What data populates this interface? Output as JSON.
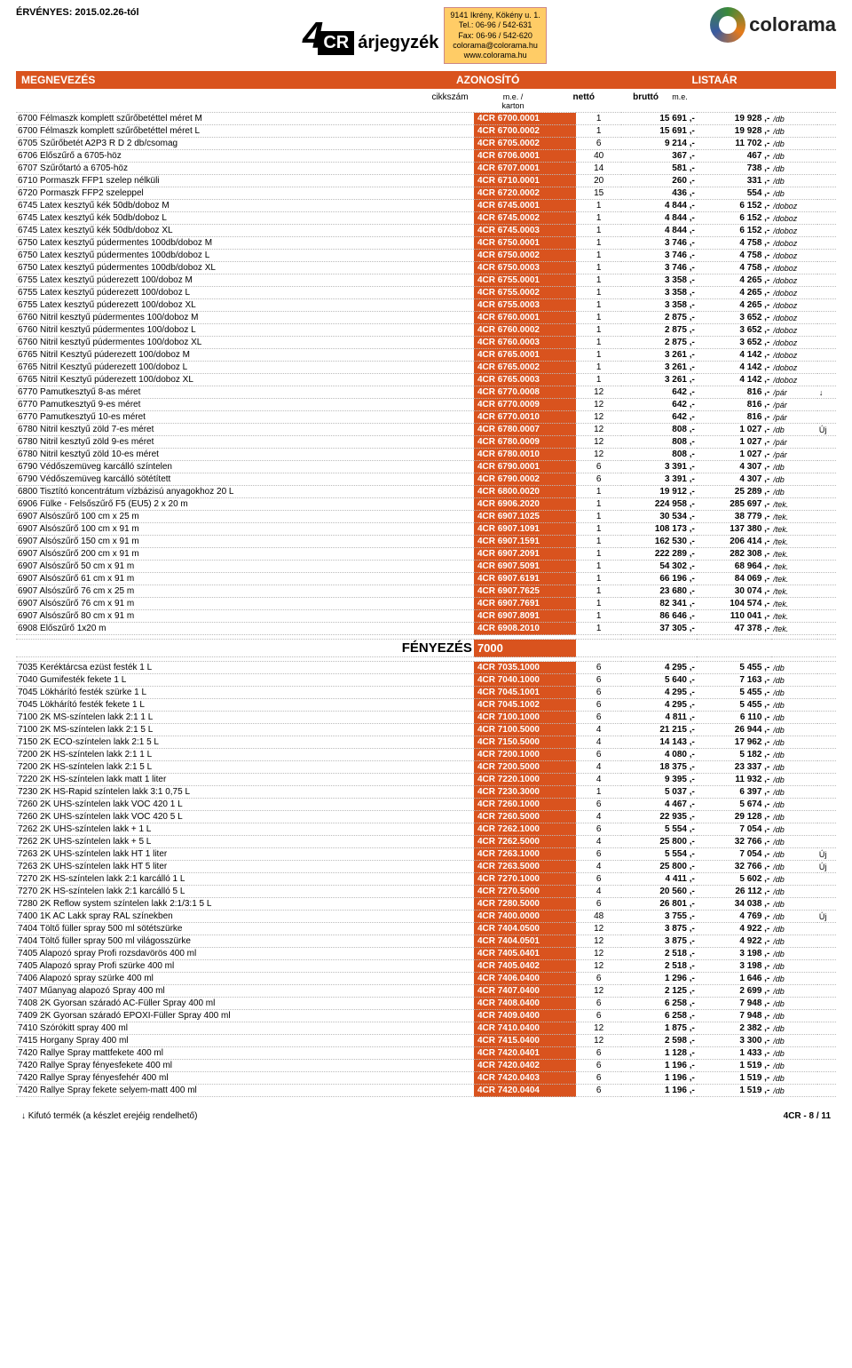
{
  "meta": {
    "validity": "ÉRVÉNYES: 2015.02.26-tól",
    "contact_addr": "9141 Ikrény, Kökény u. 1.",
    "contact_tel": "Tel.: 06-96 / 542-631",
    "contact_fax": "Fax: 06-96 / 542-620",
    "contact_mail": "colorama@colorama.hu",
    "contact_web": "www.colorama.hu",
    "logo_arj": "árjegyzék",
    "logo_colorama": "colorama"
  },
  "banner": {
    "col_name": "MEGNEVEZÉS",
    "col_id": "AZONOSÍTÓ",
    "col_price": "LISTAÁR"
  },
  "headrow": {
    "cikk": "cikkszám",
    "karton": "m.e. / karton",
    "netto": "nettó",
    "brutto": "bruttó",
    "me": "m.e."
  },
  "section": {
    "label": "FÉNYEZÉS",
    "code": "7000"
  },
  "footer": {
    "left": "↓ Kifutó termék (a készlet erejéig rendelhető)",
    "right": "4CR - 8 / 11"
  },
  "colors": {
    "primary": "#d9531e",
    "contact_bg": "#ffcc66"
  },
  "rows": [
    [
      "6700 Félmaszk komplett szűrőbetéttel  méret M",
      "4CR 6700.0001",
      "1",
      "15 691 ,-",
      "19 928 ,-",
      "/db",
      ""
    ],
    [
      "6700 Félmaszk komplett szűrőbetéttel  méret L",
      "4CR 6700.0002",
      "1",
      "15 691 ,-",
      "19 928 ,-",
      "/db",
      ""
    ],
    [
      "6705 Szűrőbetét A2P3 R D  2 db/csomag",
      "4CR 6705.0002",
      "6",
      "9 214 ,-",
      "11 702 ,-",
      "/db",
      ""
    ],
    [
      "6706 Előszűrő  a 6705-höz",
      "4CR 6706.0001",
      "40",
      "367 ,-",
      "467 ,-",
      "/db",
      ""
    ],
    [
      "6707 Szűrőtartó a 6705-höz",
      "4CR 6707.0001",
      "14",
      "581 ,-",
      "738 ,-",
      "/db",
      ""
    ],
    [
      "6710 Pormaszk FFP1 szelep nélküli",
      "4CR 6710.0001",
      "20",
      "260 ,-",
      "331 ,-",
      "/db",
      ""
    ],
    [
      "6720 Pormaszk FFP2 szeleppel",
      "4CR 6720.0002",
      "15",
      "436 ,-",
      "554 ,-",
      "/db",
      ""
    ],
    [
      "6745 Latex kesztyű kék 50db/doboz  M",
      "4CR 6745.0001",
      "1",
      "4 844 ,-",
      "6 152 ,-",
      "/doboz",
      ""
    ],
    [
      "6745 Latex kesztyű kék 50db/doboz  L",
      "4CR 6745.0002",
      "1",
      "4 844 ,-",
      "6 152 ,-",
      "/doboz",
      ""
    ],
    [
      "6745 Latex kesztyű kék 50db/doboz  XL",
      "4CR 6745.0003",
      "1",
      "4 844 ,-",
      "6 152 ,-",
      "/doboz",
      ""
    ],
    [
      "6750 Latex kesztyű púdermentes 100db/doboz  M",
      "4CR 6750.0001",
      "1",
      "3 746 ,-",
      "4 758 ,-",
      "/doboz",
      ""
    ],
    [
      "6750 Latex kesztyű púdermentes 100db/doboz  L",
      "4CR 6750.0002",
      "1",
      "3 746 ,-",
      "4 758 ,-",
      "/doboz",
      ""
    ],
    [
      "6750 Latex kesztyű púdermentes 100db/doboz  XL",
      "4CR 6750.0003",
      "1",
      "3 746 ,-",
      "4 758 ,-",
      "/doboz",
      ""
    ],
    [
      "6755 Latex kesztyű púderezett 100/doboz  M",
      "4CR 6755.0001",
      "1",
      "3 358 ,-",
      "4 265 ,-",
      "/doboz",
      ""
    ],
    [
      "6755 Latex kesztyű púderezett 100/doboz  L",
      "4CR 6755.0002",
      "1",
      "3 358 ,-",
      "4 265 ,-",
      "/doboz",
      ""
    ],
    [
      "6755 Latex kesztyű púderezett 100/doboz  XL",
      "4CR 6755.0003",
      "1",
      "3 358 ,-",
      "4 265 ,-",
      "/doboz",
      ""
    ],
    [
      "6760 Nitril kesztyű púdermentes 100/doboz  M",
      "4CR 6760.0001",
      "1",
      "2 875 ,-",
      "3 652 ,-",
      "/doboz",
      ""
    ],
    [
      "6760 Nitril kesztyű púdermentes 100/doboz  L",
      "4CR 6760.0002",
      "1",
      "2 875 ,-",
      "3 652 ,-",
      "/doboz",
      ""
    ],
    [
      "6760 Nitril kesztyű púdermentes 100/doboz  XL",
      "4CR 6760.0003",
      "1",
      "2 875 ,-",
      "3 652 ,-",
      "/doboz",
      ""
    ],
    [
      "6765 Nitril Kesztyű púderezett 100/doboz  M",
      "4CR 6765.0001",
      "1",
      "3 261 ,-",
      "4 142 ,-",
      "/doboz",
      ""
    ],
    [
      "6765 Nitril Kesztyű púderezett 100/doboz  L",
      "4CR 6765.0002",
      "1",
      "3 261 ,-",
      "4 142 ,-",
      "/doboz",
      ""
    ],
    [
      "6765 Nitril Kesztyű púderezett 100/doboz  XL",
      "4CR 6765.0003",
      "1",
      "3 261 ,-",
      "4 142 ,-",
      "/doboz",
      ""
    ],
    [
      "6770 Pamutkesztyű  8-as méret",
      "4CR 6770.0008",
      "12",
      "642 ,-",
      "816 ,-",
      "/pár",
      "↓"
    ],
    [
      "6770 Pamutkesztyű  9-es méret",
      "4CR 6770.0009",
      "12",
      "642 ,-",
      "816 ,-",
      "/pár",
      ""
    ],
    [
      "6770 Pamutkesztyű  10-es méret",
      "4CR 6770.0010",
      "12",
      "642 ,-",
      "816 ,-",
      "/pár",
      ""
    ],
    [
      "6780 Nitril kesztyű zöld  7-es méret",
      "4CR 6780.0007",
      "12",
      "808 ,-",
      "1 027 ,-",
      "/db",
      "Új"
    ],
    [
      "6780 Nitril kesztyű zöld  9-es méret",
      "4CR 6780.0009",
      "12",
      "808 ,-",
      "1 027 ,-",
      "/pár",
      ""
    ],
    [
      "6780 Nitril kesztyű zöld  10-es méret",
      "4CR 6780.0010",
      "12",
      "808 ,-",
      "1 027 ,-",
      "/pár",
      ""
    ],
    [
      "6790 Védőszemüveg karcálló színtelen",
      "4CR 6790.0001",
      "6",
      "3 391 ,-",
      "4 307 ,-",
      "/db",
      ""
    ],
    [
      "6790 Védőszemüveg karcálló sötétített",
      "4CR 6790.0002",
      "6",
      "3 391 ,-",
      "4 307 ,-",
      "/db",
      ""
    ],
    [
      "6800 Tisztító koncentrátum vízbázisú anyagokhoz  20 L",
      "4CR 6800.0020",
      "1",
      "19 912 ,-",
      "25 289 ,-",
      "/db",
      ""
    ],
    [
      "6906 Fülke - Felsőszűrő F5 (EU5)  2 x 20 m",
      "4CR 6906.2020",
      "1",
      "224 958 ,-",
      "285 697 ,-",
      "/tek.",
      ""
    ],
    [
      "6907 Alsószűrő   100 cm x 25 m",
      "4CR 6907.1025",
      "1",
      "30 534 ,-",
      "38 779 ,-",
      "/tek.",
      ""
    ],
    [
      "6907 Alsószűrő   100 cm x 91 m",
      "4CR 6907.1091",
      "1",
      "108 173 ,-",
      "137 380 ,-",
      "/tek.",
      ""
    ],
    [
      "6907 Alsószűrő  150 cm x 91 m",
      "4CR 6907.1591",
      "1",
      "162 530 ,-",
      "206 414 ,-",
      "/tek.",
      ""
    ],
    [
      "6907 Alsószűrő  200 cm x 91 m",
      "4CR 6907.2091",
      "1",
      "222 289 ,-",
      "282 308 ,-",
      "/tek.",
      ""
    ],
    [
      "6907 Alsószűrő  50 cm x 91 m",
      "4CR 6907.5091",
      "1",
      "54 302 ,-",
      "68 964 ,-",
      "/tek.",
      ""
    ],
    [
      "6907 Alsószűrő  61 cm x 91 m",
      "4CR 6907.6191",
      "1",
      "66 196 ,-",
      "84 069 ,-",
      "/tek.",
      ""
    ],
    [
      "6907 Alsószűrő   76 cm x 25 m",
      "4CR 6907.7625",
      "1",
      "23 680 ,-",
      "30 074 ,-",
      "/tek.",
      ""
    ],
    [
      "6907 Alsószűrő  76 cm x 91 m",
      "4CR 6907.7691",
      "1",
      "82 341 ,-",
      "104 574 ,-",
      "/tek.",
      ""
    ],
    [
      "6907 Alsószűrő  80 cm x 91 m",
      "4CR 6907.8091",
      "1",
      "86 646 ,-",
      "110 041 ,-",
      "/tek.",
      ""
    ],
    [
      "6908 Előszűrő 1x20 m",
      "4CR 6908.2010",
      "1",
      "37 305 ,-",
      "47 378 ,-",
      "/tek.",
      ""
    ]
  ],
  "rows2": [
    [
      "7035 Keréktárcsa ezüst festék 1 L",
      "4CR 7035.1000",
      "6",
      "4 295 ,-",
      "5 455 ,-",
      "/db",
      ""
    ],
    [
      "7040 Gumifesték fekete  1 L",
      "4CR 7040.1000",
      "6",
      "5 640 ,-",
      "7 163 ,-",
      "/db",
      ""
    ],
    [
      "7045 Lökhárító festék szürke   1 L",
      "4CR 7045.1001",
      "6",
      "4 295 ,-",
      "5 455 ,-",
      "/db",
      ""
    ],
    [
      "7045 Lökhárító festék fekete    1 L",
      "4CR 7045.1002",
      "6",
      "4 295 ,-",
      "5 455 ,-",
      "/db",
      ""
    ],
    [
      "7100 2K MS-színtelen lakk  2:1  1 L",
      "4CR 7100.1000",
      "6",
      "4 811 ,-",
      "6 110 ,-",
      "/db",
      ""
    ],
    [
      "7100 2K MS-színtelen lakk  2:1  5 L",
      "4CR 7100.5000",
      "4",
      "21 215 ,-",
      "26 944 ,-",
      "/db",
      ""
    ],
    [
      "7150 2K ECO-színtelen lakk  2:1  5 L",
      "4CR 7150.5000",
      "4",
      "14 143 ,-",
      "17 962 ,-",
      "/db",
      ""
    ],
    [
      "7200 2K HS-színtelen lakk  2:1  1 L",
      "4CR 7200.1000",
      "6",
      "4 080 ,-",
      "5 182 ,-",
      "/db",
      ""
    ],
    [
      "7200 2K HS-színtelen lakk  2:1  5 L",
      "4CR 7200.5000",
      "4",
      "18 375 ,-",
      "23 337 ,-",
      "/db",
      ""
    ],
    [
      "7220 2K HS-színtelen lakk matt  1 liter",
      "4CR 7220.1000",
      "4",
      "9 395 ,-",
      "11 932 ,-",
      "/db",
      ""
    ],
    [
      "7230 2K HS-Rapid színtelen lakk  3:1  0,75 L",
      "4CR 7230.3000",
      "1",
      "5 037 ,-",
      "6 397 ,-",
      "/db",
      ""
    ],
    [
      "7260 2K UHS-színtelen lakk VOC 420   1 L",
      "4CR 7260.1000",
      "6",
      "4 467 ,-",
      "5 674 ,-",
      "/db",
      ""
    ],
    [
      "7260 2K UHS-színtelen lakk VOC 420   5 L",
      "4CR 7260.5000",
      "4",
      "22 935 ,-",
      "29 128 ,-",
      "/db",
      ""
    ],
    [
      "7262 2K UHS-színtelen lakk + 1 L",
      "4CR 7262.1000",
      "6",
      "5 554 ,-",
      "7 054 ,-",
      "/db",
      ""
    ],
    [
      "7262 2K UHS-színtelen lakk + 5 L",
      "4CR 7262.5000",
      "4",
      "25 800 ,-",
      "32 766 ,-",
      "/db",
      ""
    ],
    [
      "7263 2K UHS-színtelen lakk HT 1 liter",
      "4CR 7263.1000",
      "6",
      "5 554 ,-",
      "7 054 ,-",
      "/db",
      "Új"
    ],
    [
      "7263 2K UHS-színtelen lakk HT 5 liter",
      "4CR 7263.5000",
      "4",
      "25 800 ,-",
      "32 766 ,-",
      "/db",
      "Új"
    ],
    [
      "7270 2K HS-színtelen lakk  2:1 karcálló  1 L",
      "4CR 7270.1000",
      "6",
      "4 411 ,-",
      "5 602 ,-",
      "/db",
      ""
    ],
    [
      "7270 2K HS-színtelen lakk  2:1 karcálló  5 L",
      "4CR 7270.5000",
      "4",
      "20 560 ,-",
      "26 112 ,-",
      "/db",
      ""
    ],
    [
      "7280 2K Reflow system színtelen lakk 2:1/3:1  5 L",
      "4CR 7280.5000",
      "6",
      "26 801 ,-",
      "34 038 ,-",
      "/db",
      ""
    ],
    [
      "7400 1K AC Lakk spray RAL színekben",
      "4CR 7400.0000",
      "48",
      "3 755 ,-",
      "4 769 ,-",
      "/db",
      "Új"
    ],
    [
      "7404 Töltő füller spray 500 ml sötétszürke",
      "4CR 7404.0500",
      "12",
      "3 875 ,-",
      "4 922 ,-",
      "/db",
      ""
    ],
    [
      "7404 Töltő füller spray 500 ml világosszürke",
      "4CR 7404.0501",
      "12",
      "3 875 ,-",
      "4 922 ,-",
      "/db",
      ""
    ],
    [
      "7405 Alapozó spray Profi rozsdavörös  400 ml",
      "4CR 7405.0401",
      "12",
      "2 518 ,-",
      "3 198 ,-",
      "/db",
      ""
    ],
    [
      "7405 Alapozó spray Profi szürke  400 ml",
      "4CR 7405.0402",
      "12",
      "2 518 ,-",
      "3 198 ,-",
      "/db",
      ""
    ],
    [
      "7406 Alapozó spray szürke  400 ml",
      "4CR 7406.0400",
      "6",
      "1 296 ,-",
      "1 646 ,-",
      "/db",
      ""
    ],
    [
      "7407 Műanyag alapozó Spray  400 ml",
      "4CR 7407.0400",
      "12",
      "2 125 ,-",
      "2 699 ,-",
      "/db",
      ""
    ],
    [
      "7408 2K Gyorsan száradó AC-Füller Spray  400 ml",
      "4CR 7408.0400",
      "6",
      "6 258 ,-",
      "7 948 ,-",
      "/db",
      ""
    ],
    [
      "7409 2K Gyorsan száradó EPOXI-Füller Spray  400 ml",
      "4CR 7409.0400",
      "6",
      "6 258 ,-",
      "7 948 ,-",
      "/db",
      ""
    ],
    [
      "7410 Szórókitt spray  400 ml",
      "4CR 7410.0400",
      "12",
      "1 875 ,-",
      "2 382 ,-",
      "/db",
      ""
    ],
    [
      "7415 Horgany Spray  400 ml",
      "4CR 7415.0400",
      "12",
      "2 598 ,-",
      "3 300 ,-",
      "/db",
      ""
    ],
    [
      "7420 Rallye Spray mattfekete 400 ml",
      "4CR 7420.0401",
      "6",
      "1 128 ,-",
      "1 433 ,-",
      "/db",
      ""
    ],
    [
      "7420 Rallye Spray fényesfekete 400 ml",
      "4CR 7420.0402",
      "6",
      "1 196 ,-",
      "1 519 ,-",
      "/db",
      ""
    ],
    [
      "7420 Rallye Spray fényesfehér 400 ml",
      "4CR 7420.0403",
      "6",
      "1 196 ,-",
      "1 519 ,-",
      "/db",
      ""
    ],
    [
      "7420 Rallye Spray fekete selyem-matt  400 ml",
      "4CR 7420.0404",
      "6",
      "1 196 ,-",
      "1 519 ,-",
      "/db",
      ""
    ]
  ]
}
